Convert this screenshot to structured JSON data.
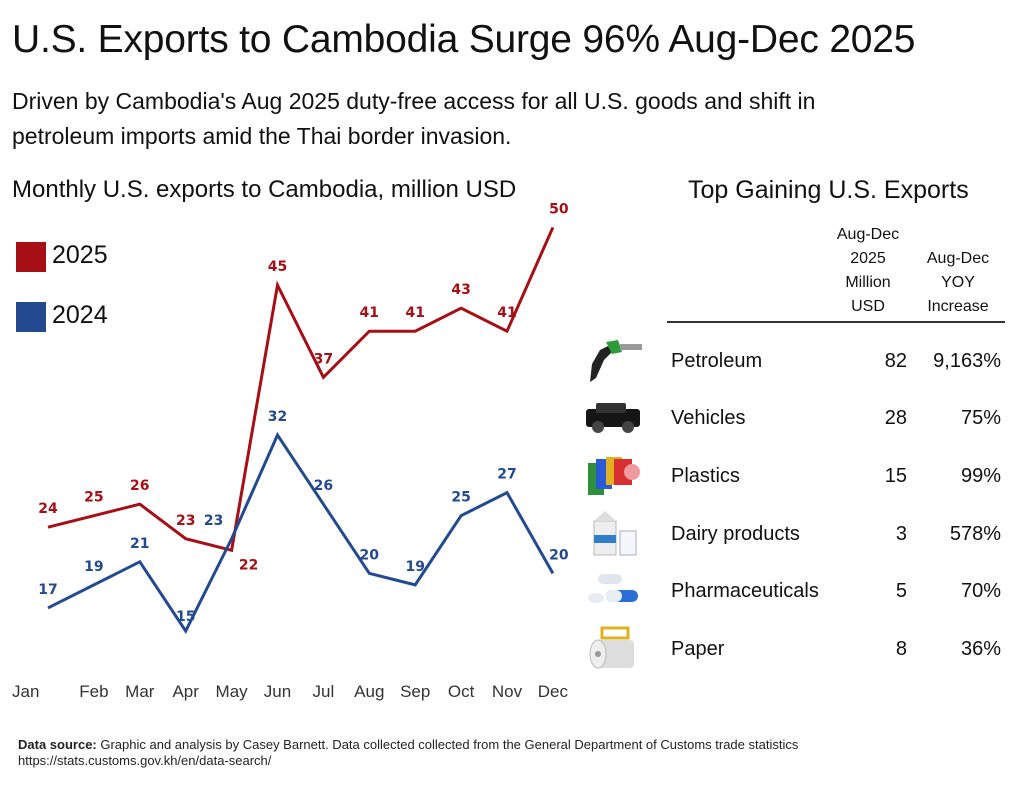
{
  "title": "U.S. Exports to Cambodia Surge 96% Aug-Dec 2025",
  "subtitle_line1": "Driven by Cambodia's Aug 2025 duty-free access for all U.S. goods and shift in",
  "subtitle_line2": "petroleum imports amid the Thai border invasion.",
  "chart_data": {
    "type": "line",
    "title": "Monthly U.S. exports to Cambodia, million USD",
    "categories": [
      "Jan",
      "Feb",
      "Mar",
      "Apr",
      "May",
      "Jun",
      "Jul",
      "Aug",
      "Sep",
      "Oct",
      "Nov",
      "Dec"
    ],
    "series": [
      {
        "name": "2025",
        "color": "#a50f15",
        "values": [
          24,
          25,
          26,
          23,
          22,
          45,
          37,
          41,
          41,
          43,
          41,
          50
        ]
      },
      {
        "name": "2024",
        "color": "#234a91",
        "values": [
          17,
          19,
          21,
          15,
          23,
          32,
          26,
          20,
          19,
          25,
          27,
          20
        ]
      }
    ],
    "grid": false,
    "legend": "top-left",
    "data_labels": true
  },
  "table": {
    "title": "Top Gaining U.S. Exports",
    "col1_header": [
      "Aug-Dec",
      "2025",
      "Million",
      "USD"
    ],
    "col2_header": [
      "Aug-Dec",
      "YOY",
      "Increase"
    ],
    "rows": [
      {
        "icon": "fuel-nozzle-icon",
        "name": "Petroleum",
        "value": "82",
        "increase": "9,163%"
      },
      {
        "icon": "vehicle-icon",
        "name": "Vehicles",
        "value": "28",
        "increase": "75%"
      },
      {
        "icon": "plastic-rolls-icon",
        "name": "Plastics",
        "value": "15",
        "increase": "99%"
      },
      {
        "icon": "milk-carton-icon",
        "name": "Dairy products",
        "value": "3",
        "increase": "578%"
      },
      {
        "icon": "pills-icon",
        "name": "Pharmaceuticals",
        "value": "5",
        "increase": "70%"
      },
      {
        "icon": "paper-roll-icon",
        "name": "Paper",
        "value": "8",
        "increase": "36%"
      }
    ]
  },
  "footer": {
    "label": "Data source:",
    "text": " Graphic and analysis by Casey Barnett. Data collected collected from the General Department of Customs trade statistics",
    "url": "https://stats.customs.gov.kh/en/data-search/"
  }
}
